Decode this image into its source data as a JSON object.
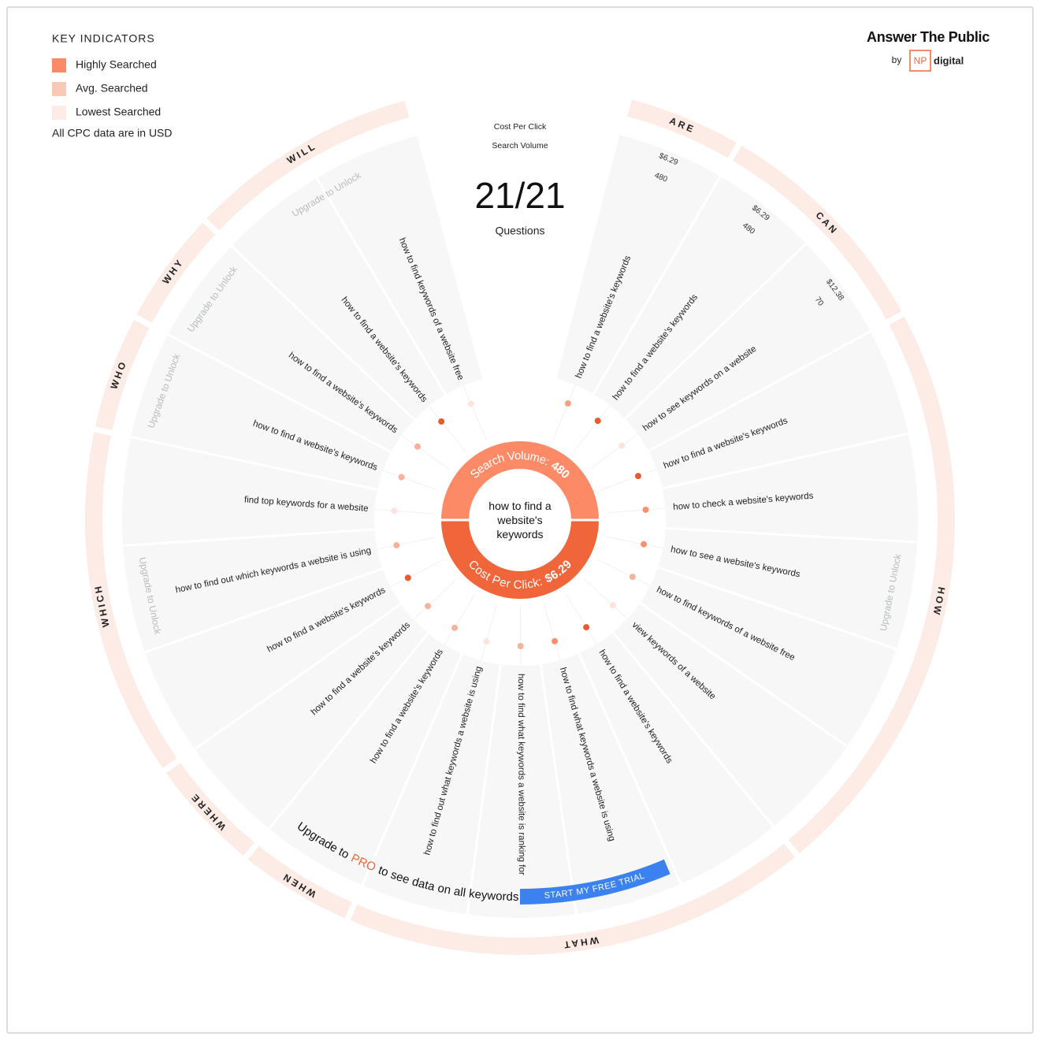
{
  "legend": {
    "title": "KEY INDICATORS",
    "items": [
      {
        "label": "Highly Searched",
        "color": "#fd8a67"
      },
      {
        "label": "Avg. Searched",
        "color": "#f9c9b8"
      },
      {
        "label": "Lowest Searched",
        "color": "#fdece6"
      }
    ],
    "note": "All CPC data are in USD"
  },
  "logo": {
    "name": "Answer The Public",
    "by": "by",
    "np": "NP",
    "digital": "digital"
  },
  "summary": {
    "cpc_label": "Cost Per Click",
    "volume_label": "Search Volume",
    "count": "21/21",
    "count_label": "Questions"
  },
  "center": {
    "volume_label": "Search Volume:",
    "volume": 480,
    "keyword": "how to find a website's keywords",
    "cpc_label": "Cost Per Click:",
    "cpc": "$6.29"
  },
  "sections": [
    {
      "label": "ARE",
      "questions": [
        {
          "text": "how to find a website's keywords",
          "color": "#f6a07f",
          "cpc": "$6.29",
          "volume": 480
        }
      ]
    },
    {
      "label": "CAN",
      "questions": [
        {
          "text": "how to find a website's keywords",
          "color": "#ea5a2c",
          "cpc": "$6.29",
          "volume": 480
        },
        {
          "text": "how to see keywords on a website",
          "color": "#fce4dc",
          "cpc": "$12.38",
          "volume": 70
        }
      ]
    },
    {
      "label": "HOW",
      "unlock": "Upgrade to Unlock",
      "questions": [
        {
          "text": "how to find a website's keywords",
          "color": "#ea5a2c"
        },
        {
          "text": "how to check a website's keywords",
          "color": "#f7916e"
        },
        {
          "text": "how to see a website's keywords",
          "color": "#f7916e"
        },
        {
          "text": "how to find keywords of a website free",
          "color": "#f6b39b"
        },
        {
          "text": "view keywords of a website",
          "color": "#fce4dc"
        }
      ]
    },
    {
      "label": "WHAT",
      "questions": [
        {
          "text": "how to find a website's keywords",
          "color": "#ea5a2c"
        },
        {
          "text": "how to find what keywords a website is using",
          "color": "#f7916e"
        },
        {
          "text": "how to find what keywords a website is ranking for",
          "color": "#f6b39b"
        },
        {
          "text": "how to find out what keywords a website is using",
          "color": "#fce4dc"
        }
      ]
    },
    {
      "label": "WHEN",
      "questions": [
        {
          "text": "how to find a website's keywords",
          "color": "#f6b39b"
        }
      ]
    },
    {
      "label": "WHERE",
      "questions": [
        {
          "text": "how to find a website's keywords",
          "color": "#f6b39b"
        }
      ]
    },
    {
      "label": "WHICH",
      "unlock": "Upgrade to Unlock",
      "questions": [
        {
          "text": "how to find a website's keywords",
          "color": "#ea5a2c"
        },
        {
          "text": "how to find out which keywords a website is using",
          "color": "#f6b39b"
        },
        {
          "text": "find top keywords for a website",
          "color": "#fce4dc"
        }
      ]
    },
    {
      "label": "WHO",
      "unlock": "Upgrade to Unlock",
      "questions": [
        {
          "text": "how to find a website's keywords",
          "color": "#f6b39b"
        }
      ]
    },
    {
      "label": "WHY",
      "unlock": "Upgrade to Unlock",
      "questions": [
        {
          "text": "how to find a website's keywords",
          "color": "#f6b39b"
        }
      ]
    },
    {
      "label": "WILL",
      "unlock": "Upgrade to Unlock",
      "questions": [
        {
          "text": "how to find a website's keywords",
          "color": "#ea5a2c"
        },
        {
          "text": "how to find keywords of a website free",
          "color": "#fce4dc"
        }
      ]
    }
  ],
  "upgrade": {
    "before": "Upgrade to",
    "pro": "PRO",
    "after": "to see data on all keywords",
    "button": "START MY FREE TRIAL"
  }
}
